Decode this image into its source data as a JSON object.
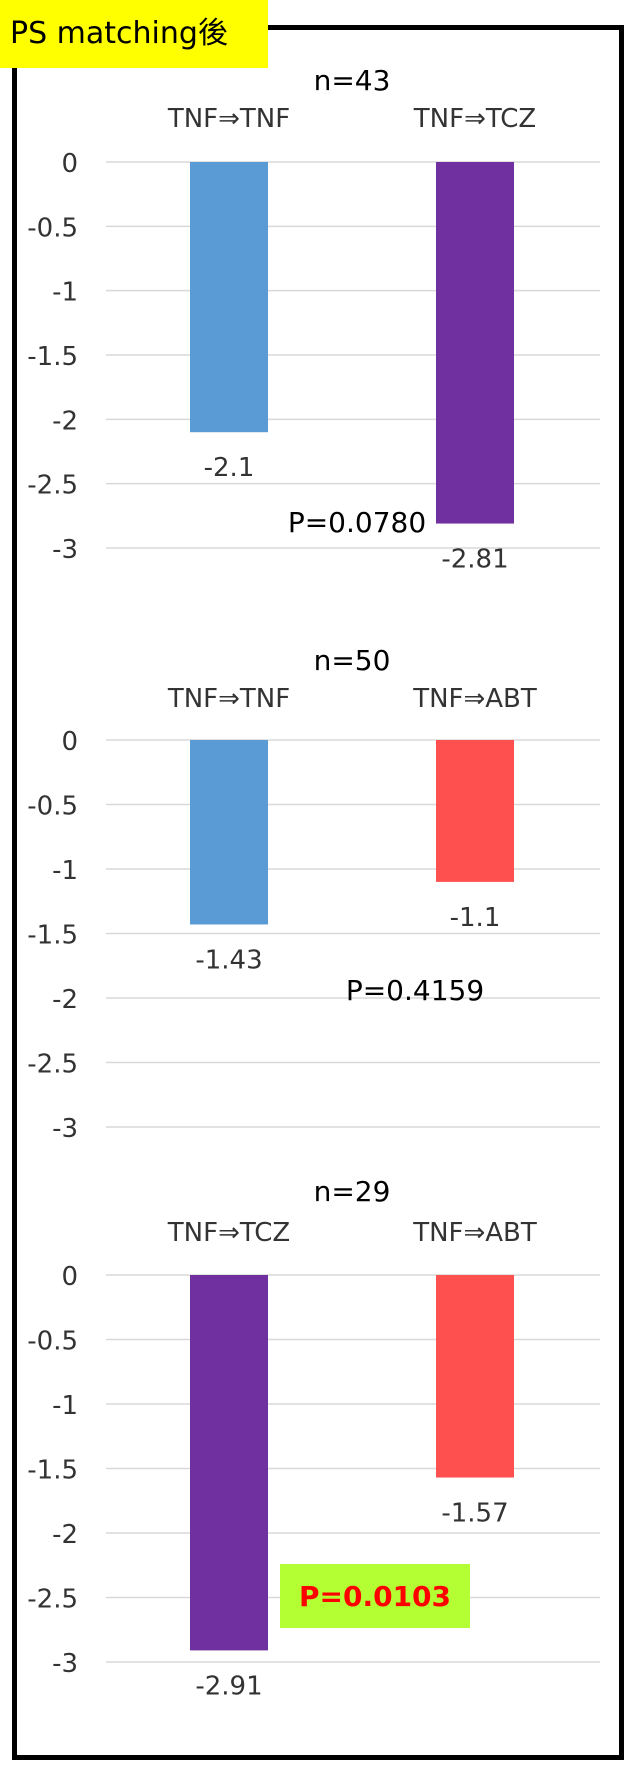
{
  "header": {
    "badge_label": "PS matching後"
  },
  "colors": {
    "tnf": "#5b9bd5",
    "tcz": "#7030a0",
    "abt": "#ff5050",
    "grid": "#d9d9d9",
    "badge": "#ffff00",
    "p_highlight_bg": "#b3ff33",
    "p_highlight_text": "#ff0000"
  },
  "chart_data": [
    {
      "type": "bar",
      "title": "n=43",
      "categories": [
        "TNF⇒TNF",
        "TNF⇒TCZ"
      ],
      "values": [
        -2.1,
        -2.81
      ],
      "value_labels": [
        "-2.1",
        "-2.81"
      ],
      "bar_colors": [
        "tnf",
        "tcz"
      ],
      "y_ticks": [
        "0",
        "-0.5",
        "-1",
        "-1.5",
        "-2",
        "-2.5",
        "-3"
      ],
      "ylim": [
        -3,
        0
      ],
      "grid": true,
      "annotation": {
        "text": "P=0.0780",
        "highlight": false
      }
    },
    {
      "type": "bar",
      "title": "n=50",
      "categories": [
        "TNF⇒TNF",
        "TNF⇒ABT"
      ],
      "values": [
        -1.43,
        -1.1
      ],
      "value_labels": [
        "-1.43",
        "-1.1"
      ],
      "bar_colors": [
        "tnf",
        "abt"
      ],
      "y_ticks": [
        "0",
        "-0.5",
        "-1",
        "-1.5",
        "-2",
        "-2.5",
        "-3"
      ],
      "ylim": [
        -3,
        0
      ],
      "grid": true,
      "annotation": {
        "text": "P=0.4159",
        "highlight": false
      }
    },
    {
      "type": "bar",
      "title": "n=29",
      "categories": [
        "TNF⇒TCZ",
        "TNF⇒ABT"
      ],
      "values": [
        -2.91,
        -1.57
      ],
      "value_labels": [
        "-2.91",
        "-1.57"
      ],
      "bar_colors": [
        "tcz",
        "abt"
      ],
      "y_ticks": [
        "0",
        "-0.5",
        "-1",
        "-1.5",
        "-2",
        "-2.5",
        "-3"
      ],
      "ylim": [
        -3,
        0
      ],
      "grid": true,
      "annotation": {
        "text": "P=0.0103",
        "highlight": true
      }
    }
  ]
}
